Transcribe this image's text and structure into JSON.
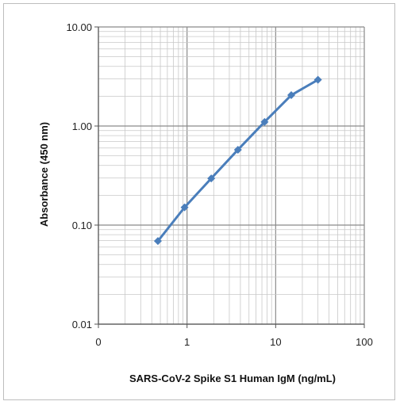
{
  "chart_data": {
    "type": "line",
    "title": "",
    "xlabel": "SARS-CoV-2 Spike S1 Human IgM (ng/mL)",
    "ylabel": "Absorbance (450 nm)",
    "x_scale": "log",
    "y_scale": "log",
    "xlim": [
      0.1,
      100
    ],
    "ylim": [
      0.01,
      10
    ],
    "x_tick_labels": [
      "0",
      "1",
      "10",
      "100"
    ],
    "y_tick_labels": [
      "10.00",
      "1.00",
      "0.10",
      "0.01"
    ],
    "grid": true,
    "series": [
      {
        "color": "#4a7ebb",
        "x": [
          0.469,
          0.938,
          1.875,
          3.75,
          7.5,
          15,
          30
        ],
        "y": [
          0.069,
          0.151,
          0.296,
          0.576,
          1.1,
          2.05,
          2.93
        ]
      }
    ]
  }
}
